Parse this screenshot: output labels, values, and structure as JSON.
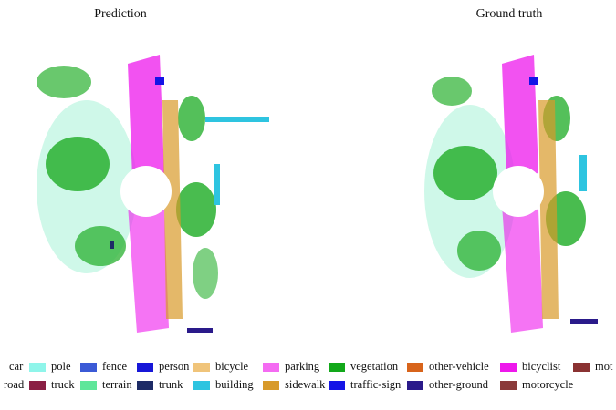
{
  "titles": {
    "left": "Prediction",
    "right": "Ground truth"
  },
  "legend": {
    "row1": [
      {
        "label": "car",
        "color": "#7aa2ee",
        "cut": true
      },
      {
        "label": "pole",
        "color": "#8ff5ea"
      },
      {
        "label": "fence",
        "color": "#3b5ad6"
      },
      {
        "label": "person",
        "color": "#1717d8"
      },
      {
        "label": "bicycle",
        "color": "#f0c47a"
      },
      {
        "label": "parking",
        "color": "#f46bf2"
      },
      {
        "label": "vegetation",
        "color": "#12a81a"
      },
      {
        "label": "other-vehicle",
        "color": "#d8641b"
      },
      {
        "label": "bicyclist",
        "color": "#ee18ec"
      },
      {
        "label": "mot",
        "color": "#8a3232"
      }
    ],
    "row2": [
      {
        "label": "road",
        "color": "#e874e8",
        "cut": true
      },
      {
        "label": "truck",
        "color": "#8a1f44"
      },
      {
        "label": "terrain",
        "color": "#5fe69a"
      },
      {
        "label": "trunk",
        "color": "#1d2b66"
      },
      {
        "label": "building",
        "color": "#2ec4e0"
      },
      {
        "label": "sidewalk",
        "color": "#d89a2a"
      },
      {
        "label": "traffic-sign",
        "color": "#1414e6"
      },
      {
        "label": "other-ground",
        "color": "#2a1a8a"
      },
      {
        "label": "motorcycle",
        "color": "#8a3a3a"
      }
    ]
  }
}
